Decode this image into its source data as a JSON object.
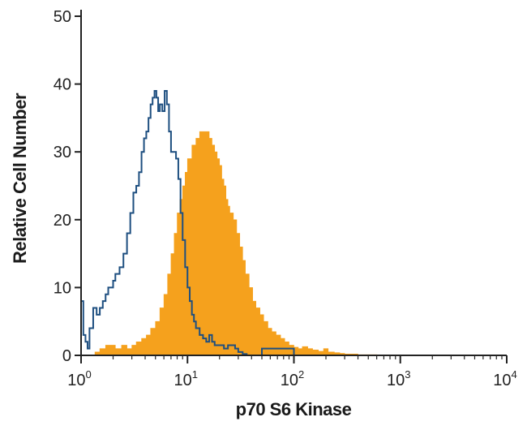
{
  "chart_data": {
    "type": "histogram",
    "xlabel": "p70 S6 Kinase",
    "ylabel": "Relative Cell Number",
    "x_scale": "log",
    "xlim": [
      1,
      10000
    ],
    "ylim": [
      0,
      50
    ],
    "y_ticks": [
      "0",
      "10",
      "20",
      "30",
      "40",
      "50"
    ],
    "x_ticks": [
      {
        "base": "10",
        "exp": "0",
        "value": 1
      },
      {
        "base": "10",
        "exp": "1",
        "value": 10
      },
      {
        "base": "10",
        "exp": "2",
        "value": 100
      },
      {
        "base": "10",
        "exp": "3",
        "value": 1000
      },
      {
        "base": "10",
        "exp": "4",
        "value": 10000
      }
    ],
    "grid": false,
    "colors": {
      "filled": "#f5a11d",
      "outline": "#1e4f80",
      "axis": "#222222"
    },
    "series": [
      {
        "style": "filled-histogram",
        "x": [
          1.0,
          1.1,
          1.2,
          1.35,
          1.5,
          1.7,
          1.9,
          2.1,
          2.4,
          2.7,
          3.0,
          3.3,
          3.7,
          4.1,
          4.5,
          5.0,
          5.5,
          6.0,
          6.5,
          7.0,
          7.5,
          8.0,
          8.5,
          9.0,
          9.5,
          10,
          11,
          12,
          13,
          14,
          15,
          16,
          17,
          18,
          19,
          20,
          21,
          22,
          23,
          24,
          25,
          27,
          29,
          31,
          33,
          35,
          38,
          41,
          44,
          48,
          52,
          57,
          62,
          68,
          75,
          82,
          90,
          100,
          110,
          120,
          135,
          150,
          170,
          190,
          210,
          240,
          270,
          300,
          400,
          600,
          1000,
          10000
        ],
        "values": [
          0,
          0,
          0,
          0.5,
          1,
          1.5,
          1.5,
          1,
          1.5,
          1,
          1.5,
          2,
          2.5,
          3,
          4,
          5,
          7,
          9,
          12,
          15,
          18,
          21,
          23,
          25,
          27,
          29,
          31,
          32,
          33,
          33,
          33,
          32,
          31,
          30,
          29,
          28,
          26,
          25,
          23,
          22,
          21,
          20,
          18,
          16,
          14,
          12,
          10,
          8,
          7,
          6,
          5,
          4,
          3.5,
          3,
          2.5,
          2,
          1.5,
          1.2,
          1,
          1.3,
          1,
          0.8,
          0.6,
          1,
          0.5,
          0.4,
          0.3,
          0.2,
          0.1,
          0,
          0,
          0
        ]
      },
      {
        "style": "outline-histogram",
        "x": [
          1.0,
          1.05,
          1.1,
          1.15,
          1.2,
          1.3,
          1.4,
          1.5,
          1.6,
          1.7,
          1.8,
          1.9,
          2.0,
          2.1,
          2.3,
          2.5,
          2.7,
          2.9,
          3.1,
          3.3,
          3.5,
          3.7,
          3.9,
          4.1,
          4.3,
          4.5,
          4.7,
          4.9,
          5.1,
          5.3,
          5.5,
          5.8,
          6.1,
          6.4,
          6.7,
          7.0,
          7.4,
          7.8,
          8.2,
          8.6,
          9.0,
          9.5,
          10,
          10.5,
          11,
          11.5,
          12,
          13,
          14,
          15,
          16,
          17,
          18,
          19,
          20,
          22,
          24,
          26,
          28,
          30,
          33,
          36,
          40,
          45,
          50,
          100,
          400,
          550,
          600,
          650,
          1000,
          10000
        ],
        "values": [
          8,
          3,
          2,
          1,
          4,
          7,
          6,
          7,
          8,
          9,
          10,
          10,
          11,
          12,
          13,
          15,
          18,
          21,
          24,
          25,
          27,
          30,
          32,
          33,
          35,
          37,
          38,
          39,
          38,
          36,
          37,
          36,
          39,
          37,
          33,
          30,
          30,
          29,
          26,
          21,
          17,
          13,
          10,
          8,
          6,
          5,
          4,
          3,
          2.5,
          2,
          3,
          2,
          1.5,
          1.5,
          1.5,
          1,
          1.5,
          1.5,
          1,
          0.5,
          0.2,
          0,
          0,
          0,
          1,
          0,
          0,
          0,
          0,
          0,
          0,
          0
        ]
      }
    ]
  }
}
